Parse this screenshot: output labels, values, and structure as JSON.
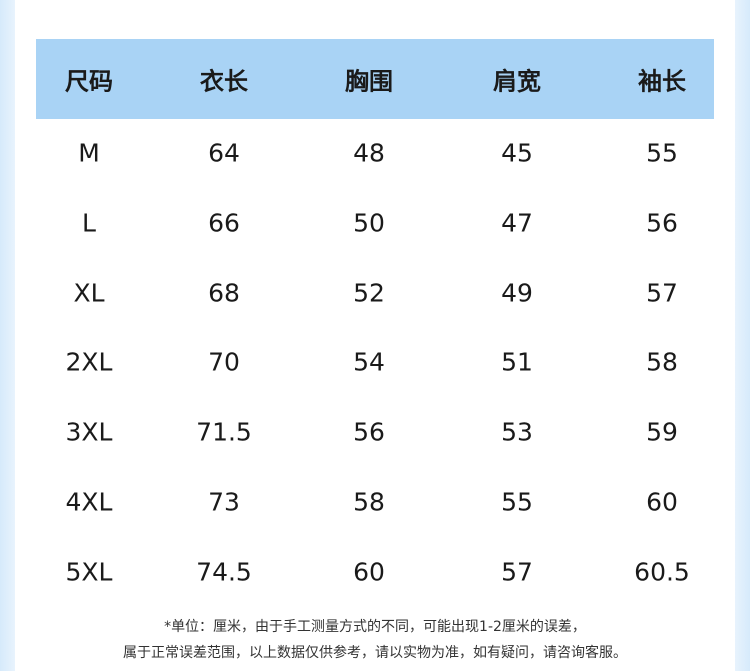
{
  "table": {
    "headers": [
      "尺码",
      "衣长",
      "胸围",
      "肩宽",
      "袖长"
    ],
    "rows": [
      [
        "M",
        "64",
        "48",
        "45",
        "55"
      ],
      [
        "L",
        "66",
        "50",
        "47",
        "56"
      ],
      [
        "XL",
        "68",
        "52",
        "49",
        "57"
      ],
      [
        "2XL",
        "70",
        "54",
        "51",
        "58"
      ],
      [
        "3XL",
        "71.5",
        "56",
        "53",
        "59"
      ],
      [
        "4XL",
        "73",
        "58",
        "55",
        "60"
      ],
      [
        "5XL",
        "74.5",
        "60",
        "57",
        "60.5"
      ]
    ]
  },
  "notes": [
    "*单位：厘米，由于手工测量方式的不同，可能出现1-2厘米的误差，",
    "属于正常误差范围，以上数据仅供参考，请以实物为准，如有疑问，请咨询客服。"
  ],
  "colors": {
    "header_bg": "#a9d3f5",
    "edge": "#d6eafb"
  }
}
